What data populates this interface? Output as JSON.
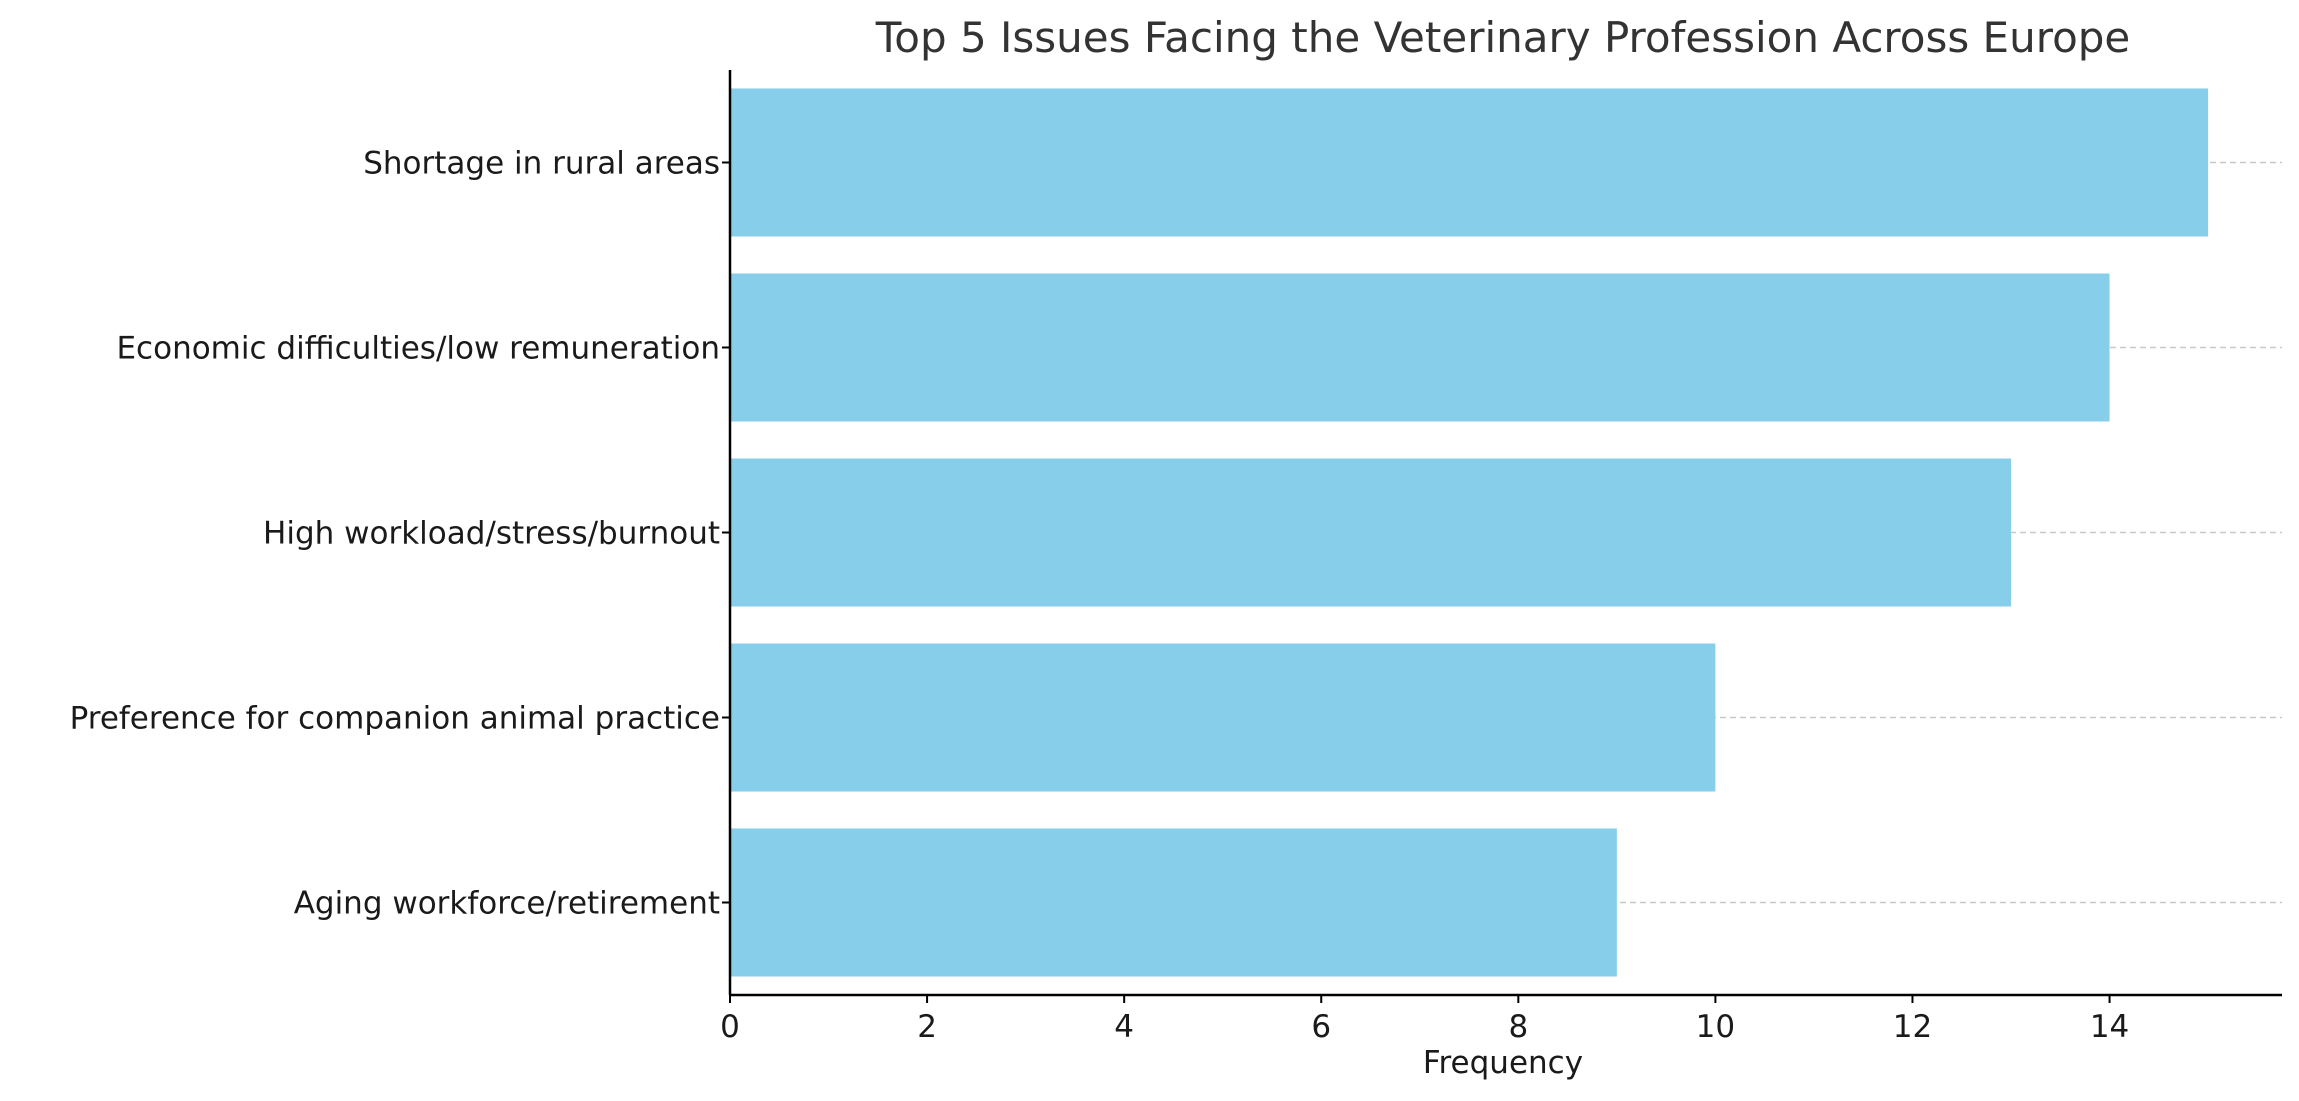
{
  "chart_data": {
    "type": "bar",
    "orientation": "horizontal",
    "title": "Top 5 Issues Facing the Veterinary Profession Across Europe",
    "xlabel": "Frequency",
    "ylabel": "",
    "categories": [
      "Shortage in rural areas",
      "Economic difficulties/low remuneration",
      "High workload/stress/burnout",
      "Preference for companion animal practice",
      "Aging workforce/retirement"
    ],
    "values": [
      15,
      14,
      13,
      10,
      9
    ],
    "xlim": [
      0,
      15.75
    ],
    "xticks": [
      "0",
      "2",
      "4",
      "6",
      "8",
      "10",
      "12",
      "14"
    ],
    "bar_color": "#87CEEB",
    "grid": "horizontal dashed",
    "legend": "none"
  }
}
